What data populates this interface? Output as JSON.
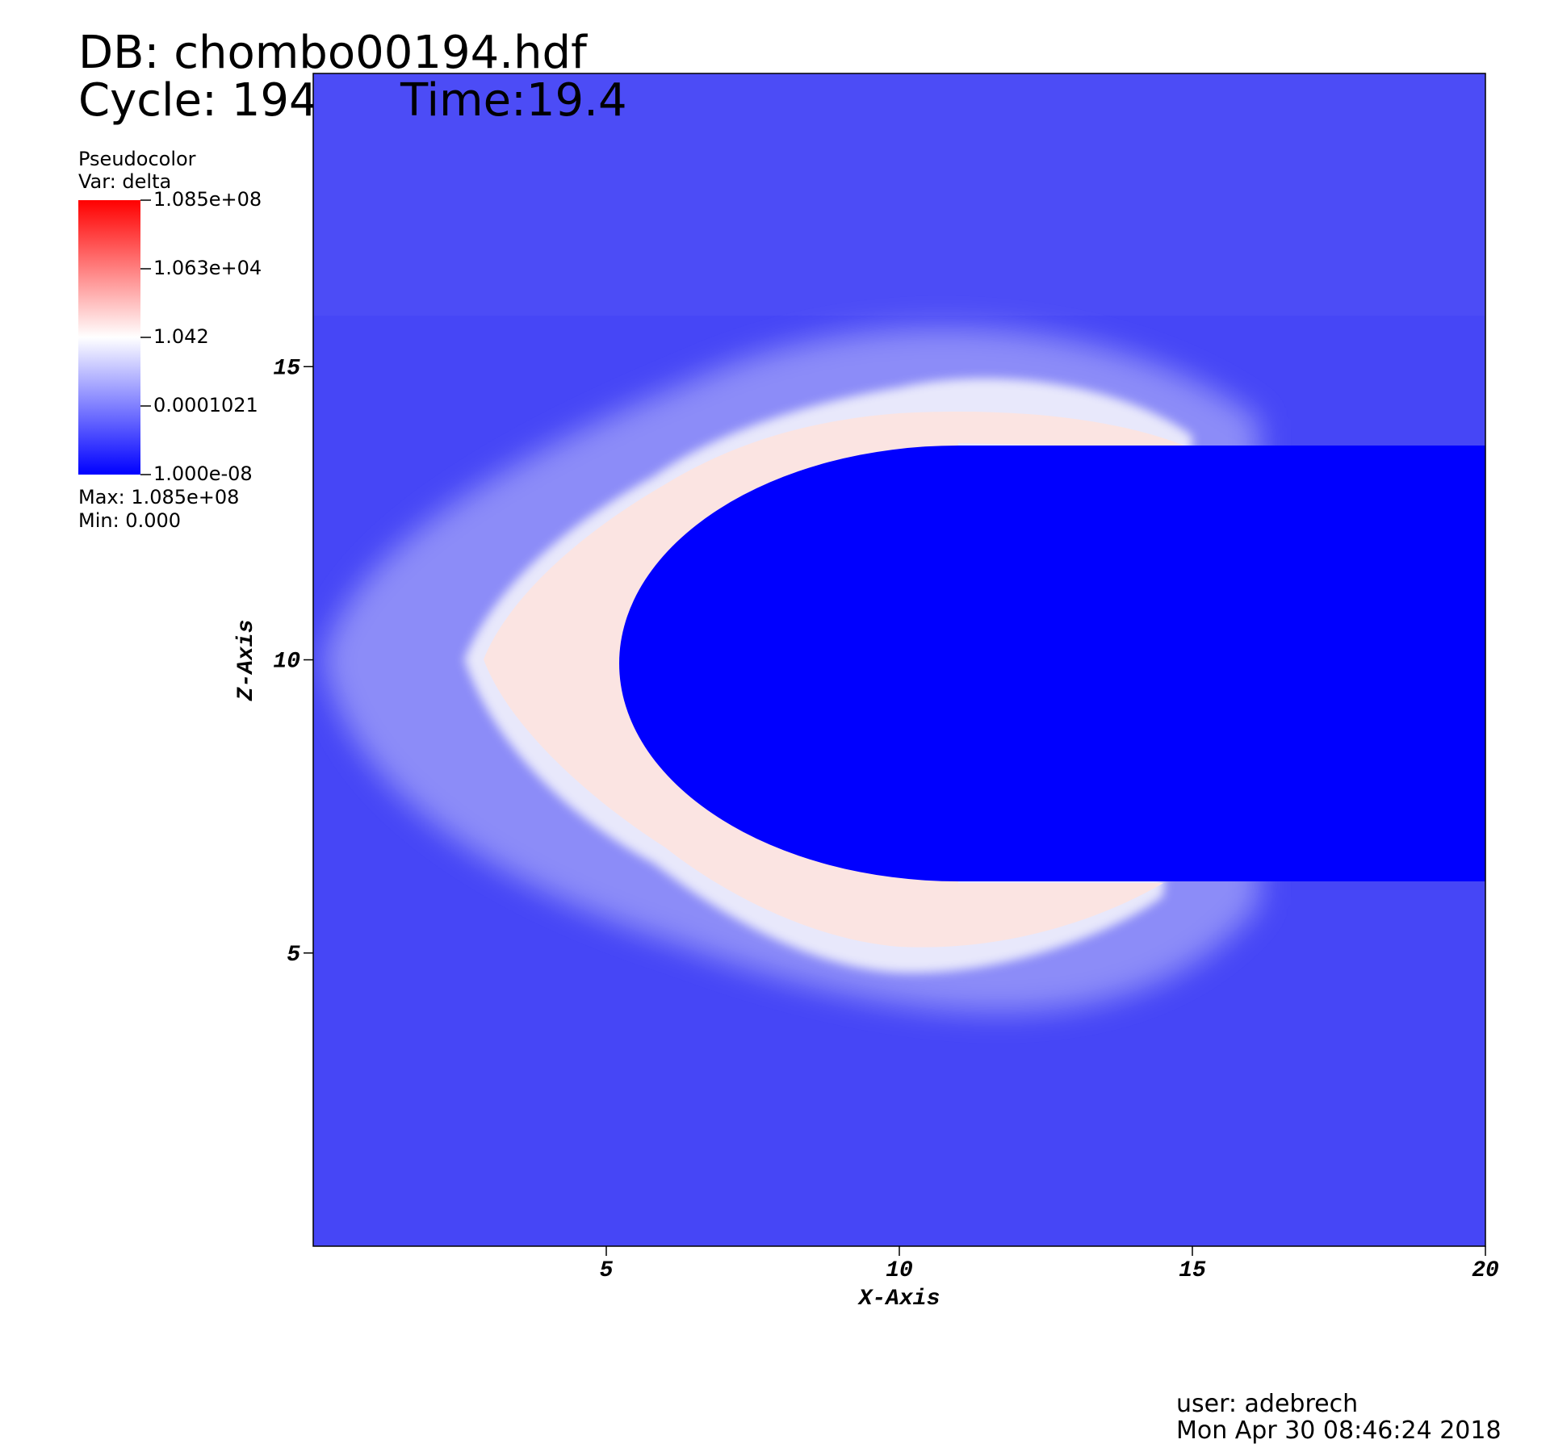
{
  "header": {
    "db": "DB: chombo00194.hdf",
    "cycle": "Cycle: 194",
    "time": "Time:19.4"
  },
  "legend": {
    "plot": "Pseudocolor",
    "var": "Var: delta",
    "max": "Max:  1.085e+08",
    "min": "Min:  0.000",
    "log_scale": true,
    "range": [
      1e-08,
      108500000
    ],
    "colors": [
      "#0000ff",
      "#ffffff",
      "#ff0000"
    ],
    "ticks": [
      {
        "value": 108500000,
        "label": "1.085e+08"
      },
      {
        "value": 10630,
        "label": "1.063e+04"
      },
      1.042,
      0.0001021,
      {
        "value": 1e-08,
        "label": "1.000e-08"
      }
    ]
  },
  "chart_data": {
    "type": "pseudocolor",
    "x_label": "X-Axis",
    "y_label": "Z-Axis",
    "xlim": [
      0,
      20
    ],
    "ylim": [
      0,
      20
    ],
    "xticks": [
      5,
      10,
      15,
      20
    ],
    "yticks": [
      5,
      10,
      15
    ]
  },
  "footer": {
    "user": "user: adebrech",
    "date": "Mon Apr 30 08:46:24 2018"
  }
}
